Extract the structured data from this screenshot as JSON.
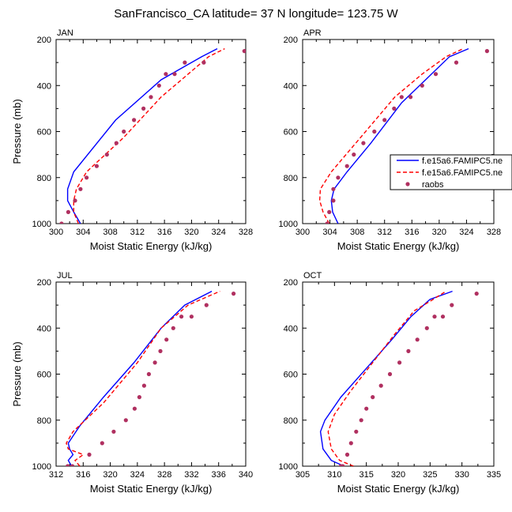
{
  "title": "SanFrancisco_CA  latitude= 37 N longitude= 123.75 W",
  "legend": [
    {
      "label": "f.e15a6.FAMIPC5.ne",
      "color": "#0000ff",
      "style": "solid"
    },
    {
      "label": "f.e15a6.FAMIPC5.ne",
      "color": "#ff0000",
      "style": "dashed"
    },
    {
      "label": "raobs",
      "color": "#b03060",
      "style": "dot"
    }
  ],
  "chart_data": [
    {
      "type": "line",
      "panel": "JAN",
      "xlabel": "Moist Static Energy (kJ/kg)",
      "ylabel": "Pressure (mb)",
      "xlim": [
        300,
        328
      ],
      "ylim": [
        200,
        1000
      ],
      "xticks": [
        "300",
        "304",
        "308",
        "312",
        "316",
        "320",
        "324",
        "328"
      ],
      "yticks": [
        "200",
        "400",
        "600",
        "800",
        "1000"
      ],
      "series": [
        {
          "name": "f.e15a6.FAMIPC5.ne",
          "color": "#0000ff",
          "dash": false,
          "type": "line",
          "x": [
            303.6,
            302.6,
            301.7,
            301.7,
            302.6,
            308.8,
            315.5,
            318.5,
            321.5,
            323.8
          ],
          "y": [
            1000,
            950,
            900,
            850,
            775,
            550,
            375,
            325,
            275,
            240
          ]
        },
        {
          "name": "f.e15a6.FAMIPC5.ne",
          "color": "#ff0000",
          "dash": true,
          "type": "line",
          "x": [
            303.3,
            302.6,
            302.6,
            303.0,
            304.5,
            310.0,
            315.5,
            318.5,
            322.5,
            324.9
          ],
          "y": [
            1000,
            950,
            900,
            850,
            775,
            625,
            450,
            375,
            275,
            240
          ]
        },
        {
          "name": "raobs",
          "color": "#b03060",
          "type": "scatter",
          "x": [
            300.8,
            301.8,
            302.8,
            303.6,
            304.5,
            306.0,
            307.5,
            308.9,
            310.0,
            311.5,
            312.9,
            314.0,
            315.2,
            316.2,
            317.5,
            319.0,
            321.8,
            327.8
          ],
          "y": [
            1000,
            950,
            900,
            850,
            800,
            750,
            700,
            650,
            600,
            550,
            500,
            450,
            400,
            350,
            350,
            300,
            300,
            250
          ]
        }
      ]
    },
    {
      "type": "line",
      "panel": "APR",
      "xlabel": "Moist Static Energy (kJ/kg)",
      "ylabel": "",
      "xlim": [
        300,
        328
      ],
      "ylim": [
        200,
        1000
      ],
      "xticks": [
        "300",
        "304",
        "308",
        "312",
        "316",
        "320",
        "324",
        "328"
      ],
      "yticks": [
        "200",
        "400",
        "600",
        "800",
        "1000"
      ],
      "series": [
        {
          "name": "f.e15a6.FAMIPC5.ne",
          "color": "#0000ff",
          "dash": false,
          "type": "line",
          "x": [
            305.2,
            304.4,
            304.2,
            304.6,
            306.5,
            310.0,
            314.5,
            318.0,
            321.5,
            324.3
          ],
          "y": [
            1000,
            950,
            900,
            850,
            775,
            650,
            475,
            375,
            275,
            240
          ]
        },
        {
          "name": "f.e15a6.FAMIPC5.ne",
          "color": "#ff0000",
          "dash": true,
          "type": "line",
          "x": [
            303.9,
            303.0,
            302.5,
            302.6,
            304.2,
            308.5,
            313.5,
            317.5,
            321.0,
            323.5
          ],
          "y": [
            1000,
            950,
            900,
            850,
            775,
            625,
            450,
            350,
            275,
            240
          ]
        },
        {
          "name": "raobs",
          "color": "#b03060",
          "type": "scatter",
          "x": [
            303.6,
            303.9,
            304.5,
            304.5,
            305.2,
            306.5,
            307.5,
            308.9,
            310.5,
            312.0,
            313.4,
            314.5,
            315.8,
            317.5,
            319.5,
            322.5,
            327.0
          ],
          "y": [
            1000,
            950,
            900,
            850,
            800,
            750,
            700,
            650,
            600,
            550,
            500,
            450,
            450,
            400,
            350,
            300,
            250
          ]
        }
      ]
    },
    {
      "type": "line",
      "panel": "JUL",
      "xlabel": "Moist Static Energy (kJ/kg)",
      "ylabel": "Pressure (mb)",
      "xlim": [
        312,
        340
      ],
      "ylim": [
        200,
        1000
      ],
      "xticks": [
        "312",
        "316",
        "320",
        "324",
        "328",
        "332",
        "336",
        "340"
      ],
      "yticks": [
        "200",
        "400",
        "600",
        "800",
        "1000"
      ],
      "series": [
        {
          "name": "f.e15a6.FAMIPC5.ne",
          "color": "#0000ff",
          "dash": false,
          "type": "line",
          "x": [
            314.3,
            313.8,
            314.5,
            314.0,
            313.8,
            315.5,
            319.0,
            323.5,
            327.5,
            331.0,
            335.0
          ],
          "y": [
            1000,
            975,
            950,
            925,
            900,
            825,
            700,
            550,
            400,
            300,
            240
          ]
        },
        {
          "name": "f.e15a6.FAMIPC5.ne",
          "color": "#ff0000",
          "dash": true,
          "type": "line",
          "x": [
            315.5,
            314.8,
            316.0,
            313.8,
            313.5,
            314.5,
            319.0,
            324.0,
            327.5,
            331.5,
            336.2
          ],
          "y": [
            1000,
            975,
            950,
            925,
            900,
            850,
            725,
            550,
            400,
            300,
            240
          ]
        },
        {
          "name": "raobs",
          "color": "#b03060",
          "type": "scatter",
          "x": [
            313.7,
            314.4,
            316.9,
            318.8,
            320.5,
            322.3,
            323.6,
            324.3,
            325.0,
            325.7,
            326.6,
            327.4,
            328.3,
            329.3,
            330.5,
            332.0,
            334.2,
            338.2
          ],
          "y": [
            1000,
            1000,
            950,
            900,
            850,
            800,
            750,
            700,
            650,
            600,
            550,
            500,
            450,
            400,
            350,
            350,
            300,
            250
          ]
        }
      ]
    },
    {
      "type": "line",
      "panel": "OCT",
      "xlabel": "Moist Static Energy (kJ/kg)",
      "ylabel": "",
      "xlim": [
        305,
        335
      ],
      "ylim": [
        200,
        1000
      ],
      "xticks": [
        "305",
        "310",
        "315",
        "320",
        "325",
        "330",
        "335"
      ],
      "yticks": [
        "200",
        "400",
        "600",
        "800",
        "1000"
      ],
      "series": [
        {
          "name": "f.e15a6.FAMIPC5.ne",
          "color": "#0000ff",
          "dash": false,
          "type": "line",
          "x": [
            311.5,
            309.5,
            308.2,
            307.8,
            308.5,
            311.0,
            315.0,
            319.0,
            322.0,
            325.0,
            328.5
          ],
          "y": [
            1000,
            975,
            925,
            850,
            800,
            700,
            575,
            450,
            350,
            275,
            240
          ]
        },
        {
          "name": "f.e15a6.FAMIPC5.ne",
          "color": "#ff0000",
          "dash": true,
          "type": "line",
          "x": [
            313.0,
            310.8,
            309.5,
            309.0,
            310.0,
            312.5,
            316.0,
            319.5,
            322.5,
            325.5,
            327.5
          ],
          "y": [
            1000,
            975,
            925,
            850,
            775,
            675,
            550,
            425,
            325,
            275,
            240
          ]
        },
        {
          "name": "raobs",
          "color": "#b03060",
          "type": "scatter",
          "x": [
            311.0,
            311.3,
            312.0,
            312.6,
            313.4,
            314.2,
            315.0,
            316.0,
            317.3,
            318.7,
            320.2,
            321.6,
            323.0,
            324.5,
            325.7,
            327.0,
            328.4,
            332.3
          ],
          "y": [
            1000,
            1000,
            950,
            900,
            850,
            800,
            750,
            700,
            650,
            600,
            550,
            500,
            450,
            400,
            350,
            350,
            300,
            250
          ]
        }
      ]
    }
  ]
}
